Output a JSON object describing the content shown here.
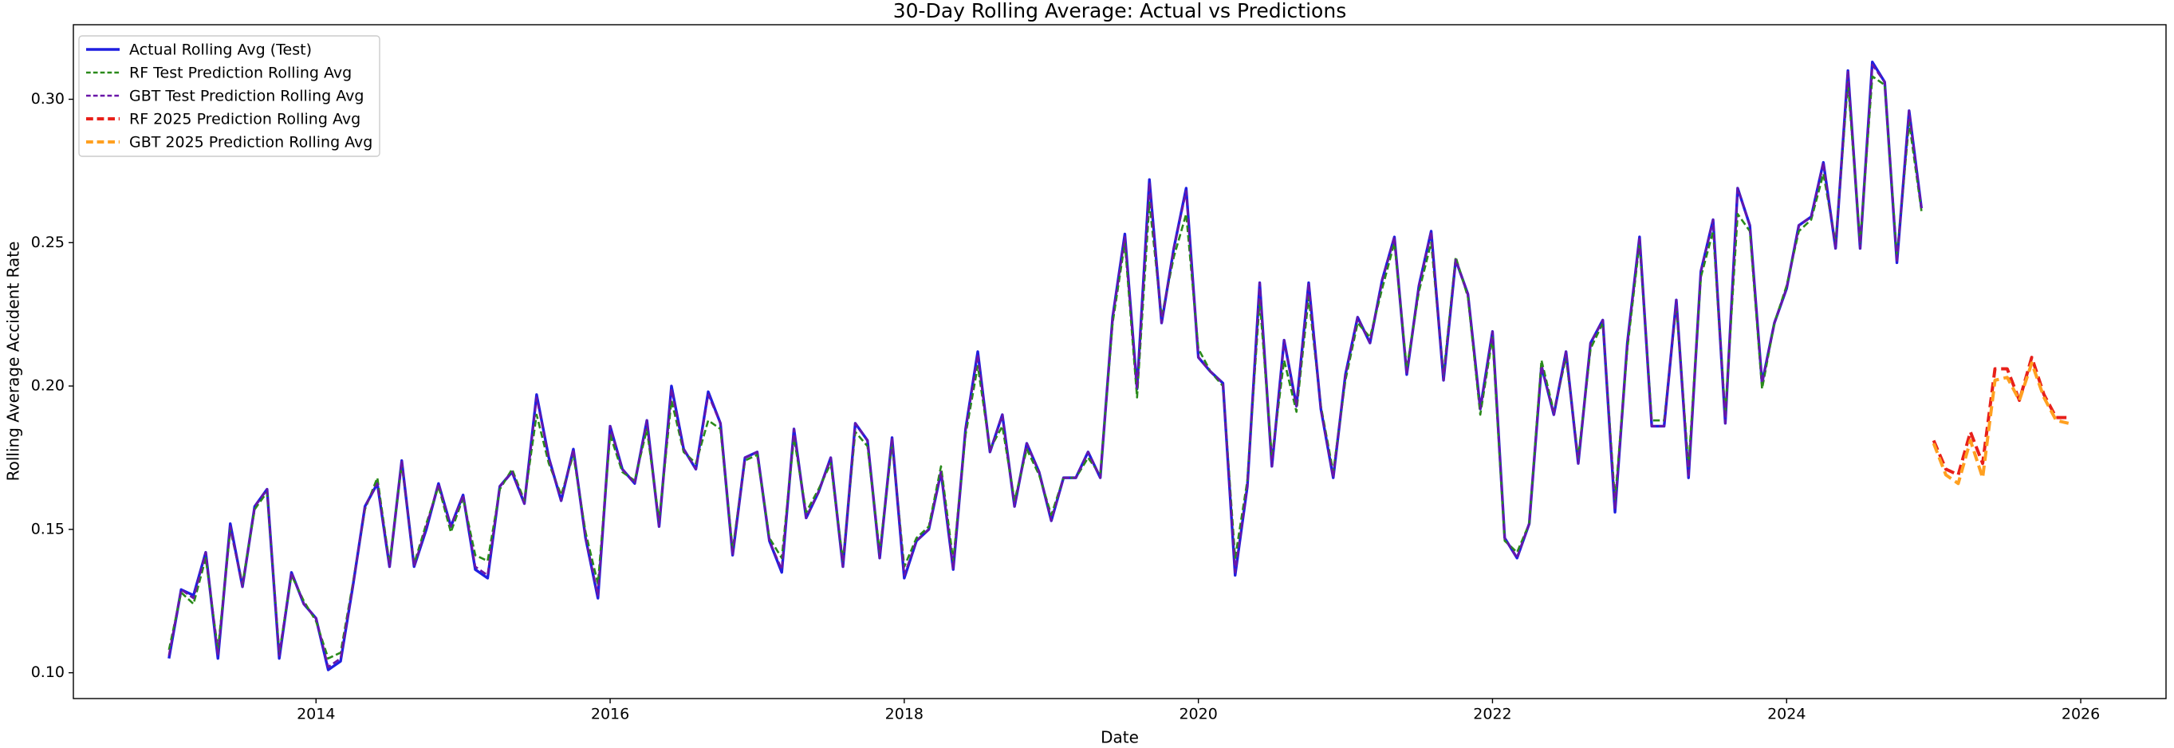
{
  "chart_data": {
    "type": "line",
    "title": "30-Day Rolling Average: Actual vs Predictions",
    "xlabel": "Date",
    "ylabel": "Rolling Average Accident Rate",
    "xlim": [
      2012.35,
      2026.58
    ],
    "ylim": [
      0.091,
      0.326
    ],
    "xticks": [
      2014,
      2016,
      2018,
      2020,
      2022,
      2024,
      2026
    ],
    "yticks": [
      {
        "value": 0.1,
        "label": "0.10"
      },
      0.15,
      {
        "value": 0.2,
        "label": "0.20"
      },
      0.25,
      {
        "value": 0.3,
        "label": "0.30"
      }
    ],
    "grid": false,
    "legend": "upper left",
    "x": [
      2013,
      2013.083,
      2013.167,
      2013.25,
      2013.333,
      2013.417,
      2013.5,
      2013.583,
      2013.667,
      2013.75,
      2013.833,
      2013.917,
      2014,
      2014.083,
      2014.167,
      2014.25,
      2014.333,
      2014.417,
      2014.5,
      2014.583,
      2014.667,
      2014.75,
      2014.833,
      2014.917,
      2015,
      2015.083,
      2015.167,
      2015.25,
      2015.333,
      2015.417,
      2015.5,
      2015.583,
      2015.667,
      2015.75,
      2015.833,
      2015.917,
      2016,
      2016.083,
      2016.167,
      2016.25,
      2016.333,
      2016.417,
      2016.5,
      2016.583,
      2016.667,
      2016.75,
      2016.833,
      2016.917,
      2017,
      2017.083,
      2017.167,
      2017.25,
      2017.333,
      2017.417,
      2017.5,
      2017.583,
      2017.667,
      2017.75,
      2017.833,
      2017.917,
      2018,
      2018.083,
      2018.167,
      2018.25,
      2018.333,
      2018.417,
      2018.5,
      2018.583,
      2018.667,
      2018.75,
      2018.833,
      2018.917,
      2019,
      2019.083,
      2019.167,
      2019.25,
      2019.333,
      2019.417,
      2019.5,
      2019.583,
      2019.667,
      2019.75,
      2019.833,
      2019.917,
      2020,
      2020.083,
      2020.167,
      2020.25,
      2020.333,
      2020.417,
      2020.5,
      2020.583,
      2020.667,
      2020.75,
      2020.833,
      2020.917,
      2021,
      2021.083,
      2021.167,
      2021.25,
      2021.333,
      2021.417,
      2021.5,
      2021.583,
      2021.667,
      2021.75,
      2021.833,
      2021.917,
      2022,
      2022.083,
      2022.167,
      2022.25,
      2022.333,
      2022.417,
      2022.5,
      2022.583,
      2022.667,
      2022.75,
      2022.833,
      2022.917,
      2023,
      2023.083,
      2023.167,
      2023.25,
      2023.333,
      2023.417,
      2023.5,
      2023.583,
      2023.667,
      2023.75,
      2023.833,
      2023.917,
      2024,
      2024.083,
      2024.167,
      2024.25,
      2024.333,
      2024.417,
      2024.5,
      2024.583,
      2024.667,
      2024.75,
      2024.833,
      2024.917
    ],
    "series": [
      {
        "name": "Actual Rolling Avg (Test)",
        "color": "#1f1fe0",
        "linestyle": "solid",
        "linewidth": 3.4,
        "values": [
          0.105,
          0.129,
          0.127,
          0.142,
          0.105,
          0.152,
          0.13,
          0.158,
          0.164,
          0.105,
          0.135,
          0.124,
          0.119,
          0.101,
          0.104,
          0.13,
          0.158,
          0.166,
          0.137,
          0.174,
          0.137,
          0.15,
          0.166,
          0.151,
          0.162,
          0.136,
          0.133,
          0.165,
          0.17,
          0.159,
          0.197,
          0.175,
          0.16,
          0.178,
          0.147,
          0.126,
          0.186,
          0.171,
          0.166,
          0.188,
          0.151,
          0.2,
          0.178,
          0.171,
          0.198,
          0.187,
          0.141,
          0.175,
          0.177,
          0.146,
          0.135,
          0.185,
          0.154,
          0.163,
          0.175,
          0.137,
          0.187,
          0.181,
          0.14,
          0.182,
          0.133,
          0.146,
          0.15,
          0.17,
          0.136,
          0.185,
          0.212,
          0.177,
          0.19,
          0.158,
          0.18,
          0.17,
          0.153,
          0.168,
          0.168,
          0.177,
          0.168,
          0.224,
          0.253,
          0.199,
          0.272,
          0.222,
          0.248,
          0.269,
          0.21,
          0.205,
          0.201,
          0.134,
          0.165,
          0.236,
          0.172,
          0.216,
          0.193,
          0.236,
          0.192,
          0.168,
          0.204,
          0.224,
          0.215,
          0.237,
          0.252,
          0.204,
          0.235,
          0.254,
          0.202,
          0.244,
          0.232,
          0.192,
          0.219,
          0.147,
          0.14,
          0.152,
          0.207,
          0.19,
          0.212,
          0.173,
          0.215,
          0.223,
          0.156,
          0.215,
          0.252,
          0.186,
          0.186,
          0.23,
          0.168,
          0.24,
          0.258,
          0.187,
          0.269,
          0.256,
          0.201,
          0.222,
          0.234,
          0.256,
          0.259,
          0.278,
          0.248,
          0.31,
          0.248,
          0.313,
          0.306,
          0.243,
          0.296,
          0.262
        ]
      },
      {
        "name": "RF Test Prediction Rolling Avg",
        "color": "#2a8a1a",
        "linestyle": "dashed",
        "linewidth": 2.6,
        "values": [
          0.108,
          0.128,
          0.124,
          0.14,
          0.108,
          0.15,
          0.131,
          0.157,
          0.163,
          0.107,
          0.134,
          0.125,
          0.118,
          0.105,
          0.107,
          0.131,
          0.157,
          0.168,
          0.138,
          0.173,
          0.138,
          0.152,
          0.165,
          0.149,
          0.161,
          0.141,
          0.139,
          0.164,
          0.171,
          0.16,
          0.19,
          0.173,
          0.162,
          0.176,
          0.149,
          0.131,
          0.183,
          0.17,
          0.167,
          0.185,
          0.153,
          0.195,
          0.177,
          0.173,
          0.188,
          0.185,
          0.143,
          0.174,
          0.176,
          0.147,
          0.14,
          0.182,
          0.156,
          0.164,
          0.173,
          0.139,
          0.184,
          0.179,
          0.142,
          0.18,
          0.137,
          0.147,
          0.151,
          0.172,
          0.139,
          0.183,
          0.207,
          0.178,
          0.186,
          0.16,
          0.178,
          0.169,
          0.155,
          0.168,
          0.168,
          0.175,
          0.169,
          0.222,
          0.25,
          0.196,
          0.264,
          0.224,
          0.245,
          0.26,
          0.213,
          0.205,
          0.2,
          0.14,
          0.167,
          0.23,
          0.175,
          0.209,
          0.191,
          0.231,
          0.193,
          0.17,
          0.202,
          0.222,
          0.217,
          0.234,
          0.25,
          0.206,
          0.233,
          0.25,
          0.204,
          0.245,
          0.231,
          0.19,
          0.217,
          0.146,
          0.142,
          0.152,
          0.209,
          0.191,
          0.21,
          0.175,
          0.213,
          0.222,
          0.16,
          0.213,
          0.25,
          0.188,
          0.188,
          0.228,
          0.172,
          0.238,
          0.254,
          0.19,
          0.26,
          0.254,
          0.199,
          0.222,
          0.235,
          0.254,
          0.258,
          0.274,
          0.25,
          0.306,
          0.25,
          0.308,
          0.305,
          0.245,
          0.292,
          0.261
        ]
      },
      {
        "name": "GBT Test Prediction Rolling Avg",
        "color": "#6a16a8",
        "linestyle": "dashed",
        "linewidth": 2.6,
        "values": [
          0.106,
          0.129,
          0.126,
          0.142,
          0.106,
          0.151,
          0.13,
          0.158,
          0.164,
          0.106,
          0.135,
          0.124,
          0.119,
          0.102,
          0.105,
          0.13,
          0.158,
          0.166,
          0.137,
          0.174,
          0.137,
          0.151,
          0.166,
          0.151,
          0.162,
          0.137,
          0.134,
          0.165,
          0.17,
          0.159,
          0.196,
          0.175,
          0.16,
          0.178,
          0.147,
          0.127,
          0.186,
          0.171,
          0.166,
          0.188,
          0.151,
          0.199,
          0.178,
          0.171,
          0.197,
          0.187,
          0.141,
          0.175,
          0.177,
          0.146,
          0.136,
          0.185,
          0.154,
          0.163,
          0.175,
          0.137,
          0.187,
          0.181,
          0.14,
          0.182,
          0.134,
          0.146,
          0.15,
          0.17,
          0.136,
          0.185,
          0.211,
          0.177,
          0.19,
          0.158,
          0.18,
          0.17,
          0.153,
          0.168,
          0.168,
          0.177,
          0.168,
          0.224,
          0.252,
          0.199,
          0.271,
          0.222,
          0.248,
          0.268,
          0.21,
          0.205,
          0.201,
          0.135,
          0.165,
          0.236,
          0.172,
          0.216,
          0.193,
          0.236,
          0.192,
          0.168,
          0.204,
          0.224,
          0.215,
          0.237,
          0.252,
          0.204,
          0.235,
          0.254,
          0.202,
          0.244,
          0.232,
          0.192,
          0.219,
          0.147,
          0.14,
          0.152,
          0.207,
          0.19,
          0.212,
          0.173,
          0.215,
          0.223,
          0.157,
          0.215,
          0.252,
          0.186,
          0.186,
          0.23,
          0.168,
          0.24,
          0.258,
          0.187,
          0.269,
          0.256,
          0.201,
          0.222,
          0.234,
          0.256,
          0.259,
          0.278,
          0.248,
          0.31,
          0.248,
          0.312,
          0.306,
          0.243,
          0.296,
          0.262
        ]
      },
      {
        "name": "RF 2025 Prediction Rolling Avg",
        "color": "#e8201a",
        "linestyle": "dashed",
        "linewidth": 4,
        "x": [
          2025,
          2025.083,
          2025.167,
          2025.25,
          2025.333,
          2025.417,
          2025.5,
          2025.583,
          2025.667,
          2025.75,
          2025.833,
          2025.917
        ],
        "values": [
          0.181,
          0.171,
          0.169,
          0.184,
          0.173,
          0.206,
          0.206,
          0.195,
          0.21,
          0.197,
          0.189,
          0.189
        ]
      },
      {
        "name": "GBT 2025 Prediction Rolling Avg",
        "color": "#ffa020",
        "linestyle": "dashed",
        "linewidth": 4,
        "x": [
          2025,
          2025.083,
          2025.167,
          2025.25,
          2025.333,
          2025.417,
          2025.5,
          2025.583,
          2025.667,
          2025.75,
          2025.833,
          2025.917
        ],
        "values": [
          0.18,
          0.169,
          0.166,
          0.181,
          0.168,
          0.202,
          0.203,
          0.195,
          0.208,
          0.196,
          0.188,
          0.187
        ]
      }
    ]
  }
}
